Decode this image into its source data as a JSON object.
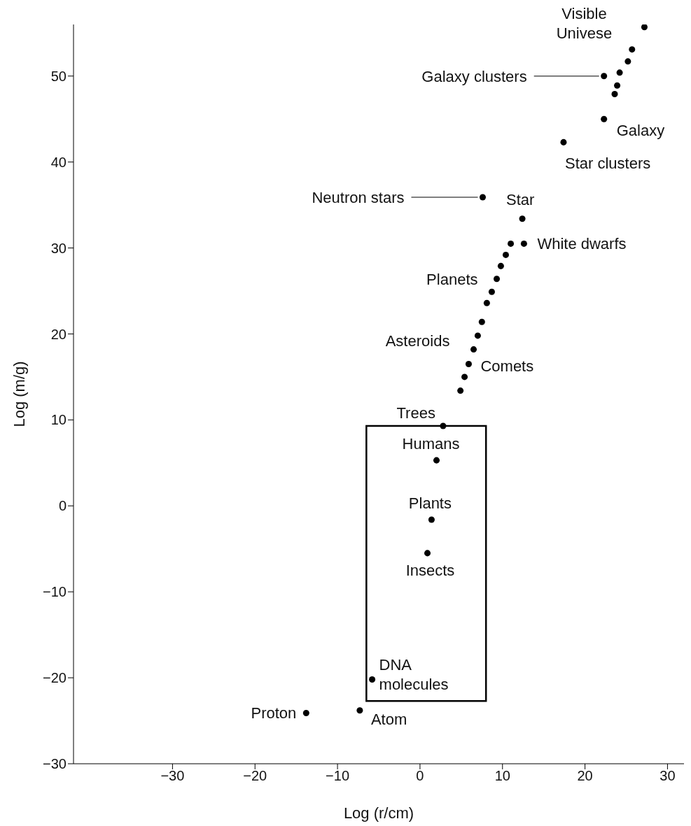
{
  "chart_data": {
    "type": "scatter",
    "xlabel": "Log (r/cm)",
    "ylabel": "Log (m/g)",
    "xlim": [
      -42,
      32
    ],
    "xticks": [
      -30,
      -20,
      -10,
      0,
      10,
      20,
      30
    ],
    "ylim": [
      -30,
      56
    ],
    "yticks": [
      -30,
      -20,
      -10,
      0,
      10,
      20,
      30,
      40,
      50
    ],
    "marker": "circle",
    "series": [
      {
        "color": "#000000",
        "x": [
          27.2,
          25.7,
          25.2,
          24.2,
          22.3,
          23.9,
          23.6,
          22.3,
          17.4,
          7.6,
          12.4,
          12.6,
          11.0,
          10.4,
          9.8,
          9.3,
          8.7,
          8.1,
          7.5,
          7.0,
          6.5,
          5.9,
          5.4,
          4.9,
          2.8,
          2.0,
          1.4,
          0.9,
          -5.8,
          -7.3,
          -13.8
        ],
        "values": [
          55.7,
          53.1,
          51.7,
          50.4,
          50.0,
          48.9,
          47.9,
          45.0,
          42.3,
          35.9,
          33.4,
          30.5,
          30.5,
          29.2,
          27.9,
          26.4,
          24.9,
          23.6,
          21.4,
          19.8,
          18.2,
          16.5,
          15.0,
          13.4,
          9.3,
          5.3,
          -1.6,
          -5.5,
          -20.2,
          -23.8,
          -24.1
        ]
      }
    ],
    "annotations": [
      {
        "text": "Visible Univese",
        "x": 27.2,
        "y": 55.7
      },
      {
        "text": "Galaxy clusters",
        "x": 22.3,
        "y": 50.0
      },
      {
        "text": "Galaxy",
        "x": 22.3,
        "y": 45.0
      },
      {
        "text": "Star clusters",
        "x": 17.4,
        "y": 42.3
      },
      {
        "text": "Neutron stars",
        "x": 7.6,
        "y": 35.9
      },
      {
        "text": "Star",
        "x": 12.4,
        "y": 33.4
      },
      {
        "text": "White dwarfs",
        "x": 12.6,
        "y": 30.5
      },
      {
        "text": "Planets",
        "x": 9.3,
        "y": 26.4
      },
      {
        "text": "Asteroids",
        "x": 7.0,
        "y": 19.8
      },
      {
        "text": "Comets",
        "x": 5.9,
        "y": 16.5
      },
      {
        "text": "Trees",
        "x": 2.8,
        "y": 9.3
      },
      {
        "text": "Humans",
        "x": 2.0,
        "y": 5.3
      },
      {
        "text": "Plants",
        "x": 1.4,
        "y": -1.6
      },
      {
        "text": "Insects",
        "x": 0.9,
        "y": -5.5
      },
      {
        "text": "DNA molecules",
        "x": -5.8,
        "y": -20.2
      },
      {
        "text": "Atom",
        "x": -7.3,
        "y": -23.8
      },
      {
        "text": "Proton",
        "x": -13.8,
        "y": -24.1
      }
    ]
  }
}
